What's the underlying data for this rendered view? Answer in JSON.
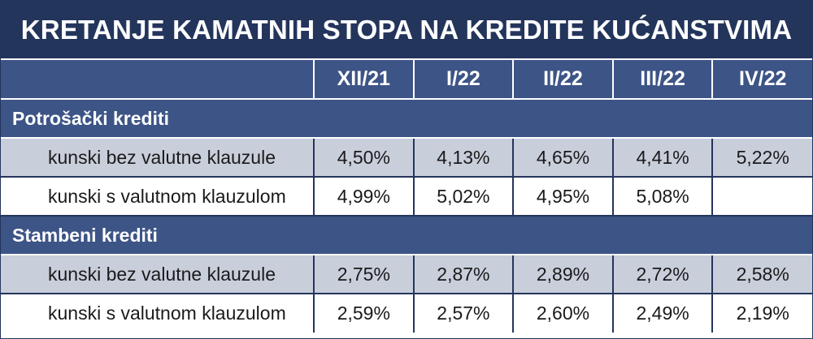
{
  "title": "KRETANJE KAMATNIH STOPA NA KREDITE KUĆANSTVIMA",
  "columns": [
    "XII/21",
    "I/22",
    "II/22",
    "III/22",
    "IV/22"
  ],
  "sections": [
    {
      "name": "Potrošački krediti",
      "rows": [
        {
          "label": "kunski bez valutne klauzule",
          "values": [
            "4,50%",
            "4,13%",
            "4,65%",
            "4,41%",
            "5,22%"
          ]
        },
        {
          "label": "kunski s valutnom klauzulom",
          "values": [
            "4,99%",
            "5,02%",
            "4,95%",
            "5,08%",
            ""
          ]
        }
      ]
    },
    {
      "name": "Stambeni krediti",
      "rows": [
        {
          "label": "kunski bez valutne klauzule",
          "values": [
            "2,75%",
            "2,87%",
            "2,89%",
            "2,72%",
            "2,58%"
          ]
        },
        {
          "label": "kunski s valutnom klauzulom",
          "values": [
            "2,59%",
            "2,57%",
            "2,60%",
            "2,49%",
            "2,19%"
          ]
        }
      ]
    }
  ],
  "colors": {
    "title_bg": "#24355c",
    "header_bg": "#3d5486",
    "shade_row": "#c9cedb"
  }
}
